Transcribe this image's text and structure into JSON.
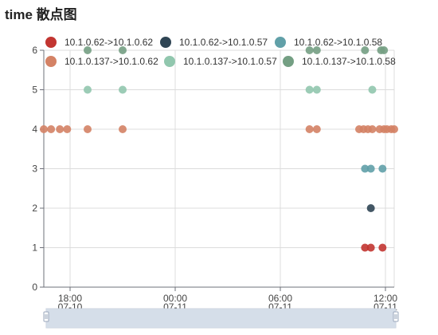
{
  "title": "time 散点图",
  "chart_data": {
    "type": "scatter",
    "title": "time 散点图",
    "xlabel": "",
    "ylabel": "",
    "x_axis_type": "time",
    "xlim": [
      "2021-07-10T16:30",
      "2021-07-11T12:30"
    ],
    "ylim": [
      0,
      6
    ],
    "y_ticks": [
      0,
      1,
      2,
      3,
      4,
      5,
      6
    ],
    "x_ticks": [
      {
        "time": "2021-07-10T18:00",
        "label": "18:00",
        "sublabel": "07-10"
      },
      {
        "time": "2021-07-11T00:00",
        "label": "00:00",
        "sublabel": "07-11"
      },
      {
        "time": "2021-07-11T06:00",
        "label": "06:00",
        "sublabel": "07-11"
      },
      {
        "time": "2021-07-11T12:00",
        "label": "12:00",
        "sublabel": "07-11"
      }
    ],
    "grid": true,
    "legend_position": "top",
    "series": [
      {
        "name": "10.1.0.62->10.1.0.62",
        "color": "#c23531",
        "points": [
          [
            "2021-07-11T10:50",
            1
          ],
          [
            "2021-07-11T11:10",
            1
          ],
          [
            "2021-07-11T11:50",
            1
          ]
        ]
      },
      {
        "name": "10.1.0.62->10.1.0.57",
        "color": "#2f4554",
        "points": [
          [
            "2021-07-11T11:10",
            2
          ]
        ]
      },
      {
        "name": "10.1.0.62->10.1.0.58",
        "color": "#61a0a8",
        "points": [
          [
            "2021-07-11T10:50",
            3
          ],
          [
            "2021-07-11T11:10",
            3
          ],
          [
            "2021-07-11T11:50",
            3
          ]
        ]
      },
      {
        "name": "10.1.0.137->10.1.0.62",
        "color": "#d48265",
        "points": [
          [
            "2021-07-10T16:30",
            4
          ],
          [
            "2021-07-10T16:55",
            4
          ],
          [
            "2021-07-10T17:25",
            4
          ],
          [
            "2021-07-10T17:50",
            4
          ],
          [
            "2021-07-10T19:00",
            4
          ],
          [
            "2021-07-10T21:00",
            4
          ],
          [
            "2021-07-11T07:40",
            4
          ],
          [
            "2021-07-11T08:05",
            4
          ],
          [
            "2021-07-11T10:30",
            4
          ],
          [
            "2021-07-11T10:45",
            4
          ],
          [
            "2021-07-11T11:00",
            4
          ],
          [
            "2021-07-11T11:15",
            4
          ],
          [
            "2021-07-11T11:40",
            4
          ],
          [
            "2021-07-11T11:55",
            4
          ],
          [
            "2021-07-11T12:05",
            4
          ],
          [
            "2021-07-11T12:20",
            4
          ],
          [
            "2021-07-11T12:30",
            4
          ]
        ]
      },
      {
        "name": "10.1.0.137->10.1.0.57",
        "color": "#91c7ae",
        "points": [
          [
            "2021-07-10T19:00",
            5
          ],
          [
            "2021-07-10T21:00",
            5
          ],
          [
            "2021-07-11T07:40",
            5
          ],
          [
            "2021-07-11T08:05",
            5
          ],
          [
            "2021-07-11T11:15",
            5
          ]
        ]
      },
      {
        "name": "10.1.0.137->10.1.0.58",
        "color": "#749f83",
        "points": [
          [
            "2021-07-10T19:00",
            6
          ],
          [
            "2021-07-10T21:00",
            6
          ],
          [
            "2021-07-11T07:40",
            6
          ],
          [
            "2021-07-11T08:05",
            6
          ],
          [
            "2021-07-11T10:50",
            6
          ],
          [
            "2021-07-11T11:45",
            6
          ],
          [
            "2021-07-11T11:55",
            6
          ]
        ]
      }
    ]
  }
}
